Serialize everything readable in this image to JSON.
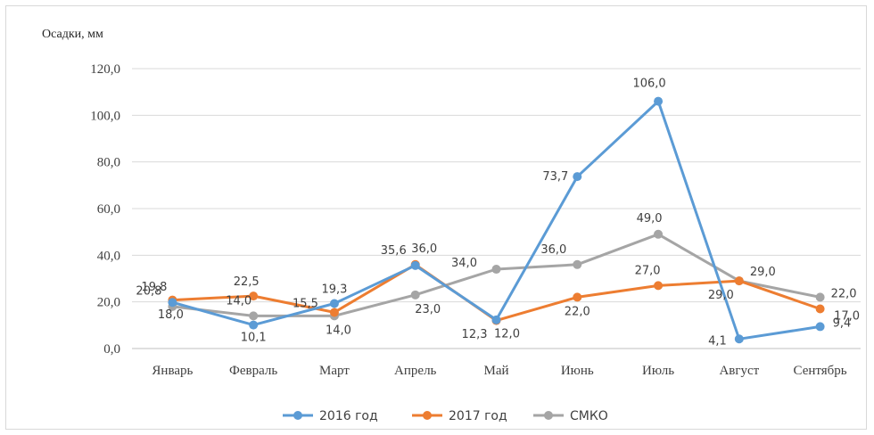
{
  "chart_data": {
    "type": "line",
    "ylabel": "Осадки, мм",
    "ylim": [
      0,
      120
    ],
    "yticks": [
      "0,0",
      "20,0",
      "40,0",
      "60,0",
      "80,0",
      "100,0",
      "120,0"
    ],
    "categories": [
      "Январь",
      "Февраль",
      "Март",
      "Апрель",
      "Май",
      "Июнь",
      "Июль",
      "Август",
      "Сентябрь"
    ],
    "grid": true,
    "legend_position": "bottom",
    "series": [
      {
        "name": "2016 год",
        "color": "#5b9bd5",
        "values": [
          19.8,
          10.1,
          19.3,
          35.6,
          12.3,
          73.7,
          106.0,
          4.1,
          9.4
        ],
        "labels": [
          "19,8",
          "10,1",
          "19,3",
          "35,6",
          "12,3",
          "73,7",
          "106,0",
          "4,1",
          "9,4"
        ]
      },
      {
        "name": "2017 год",
        "color": "#ed7d31",
        "values": [
          20.8,
          22.5,
          15.5,
          36.0,
          12.0,
          22.0,
          27.0,
          29.0,
          17.0
        ],
        "labels": [
          "20,8",
          "22,5",
          "15,5",
          "36,0",
          "12,0",
          "22,0",
          "27,0",
          "29,0",
          "17,0"
        ]
      },
      {
        "name": "СМКО",
        "color": "#a5a5a5",
        "values": [
          18.0,
          14.0,
          14.0,
          23.0,
          34.0,
          36.0,
          49.0,
          29.0,
          22.0
        ],
        "labels": [
          "18,0",
          "14,0",
          "14,0",
          "23,0",
          "34,0",
          "36,0",
          "49,0",
          "29,0",
          "22,0"
        ]
      }
    ]
  }
}
